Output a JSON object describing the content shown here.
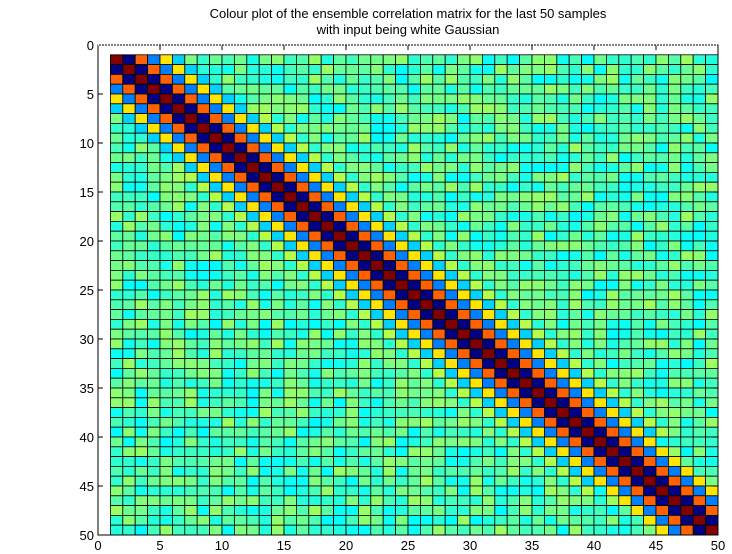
{
  "chart_data": {
    "type": "heatmap",
    "title_lines": [
      "Colour plot of the ensemble correlation matrix for the last 50 samples",
      "with input being white Gaussian"
    ],
    "xlabel": "",
    "ylabel": "",
    "xlim": [
      0,
      50
    ],
    "ylim": [
      0,
      50
    ],
    "y_axis_reversed": true,
    "x_ticks": [
      "0",
      "5",
      "10",
      "15",
      "20",
      "25",
      "30",
      "35",
      "40",
      "45",
      "50"
    ],
    "y_ticks": [
      "0",
      "5",
      "10",
      "15",
      "20",
      "25",
      "30",
      "35",
      "40",
      "45",
      "50"
    ],
    "grid": true,
    "colormap": "jet",
    "matrix_size": 50,
    "diagonal_pattern": {
      "description": "Banded symmetric correlation matrix; value depends on |i - j| lag",
      "lag_color_levels": [
        {
          "lag": 0,
          "level": 1.0
        },
        {
          "lag": 1,
          "level": 0.0
        },
        {
          "lag": 2,
          "level": 0.78
        },
        {
          "lag": 3,
          "level": 0.25
        },
        {
          "lag": 4,
          "level": 0.65
        },
        {
          "lag": 5,
          "level": 0.33
        },
        {
          "lag": 6,
          "level": 0.55
        },
        {
          "lag": 7,
          "level": 0.42
        },
        {
          "lag": 8,
          "level": 0.5
        }
      ],
      "background_level": 0.45
    }
  }
}
